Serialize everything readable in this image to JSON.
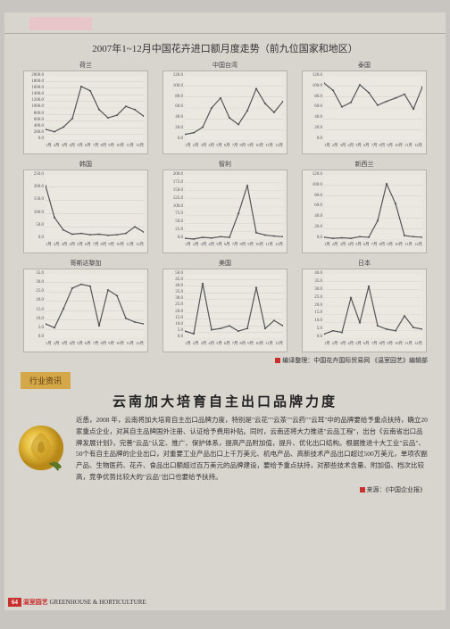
{
  "watermark": "诚信资讯 http://www.cqvip.com",
  "main_title": "2007年1~12月中国花卉进口额月度走势（前九位国家和地区）",
  "x_ticks": [
    "1月",
    "2月",
    "3月",
    "4月",
    "5月",
    "6月",
    "7月",
    "8月",
    "9月",
    "10月",
    "11月",
    "12月"
  ],
  "charts": [
    {
      "label": "荷兰",
      "type": "line",
      "y_label": "进口金额（万美元）",
      "ylim": [
        0,
        2000
      ],
      "ytick_step": 200,
      "values": [
        350,
        280,
        420,
        680,
        1650,
        1520,
        950,
        700,
        780,
        1050,
        950,
        750
      ],
      "line_color": "#555555",
      "background": "#e8e5df",
      "grid_color": "#c5c2bc"
    },
    {
      "label": "中国台湾",
      "type": "line",
      "y_label": "进口金额（万美元）",
      "ylim": [
        0,
        120
      ],
      "ytick_step": 20,
      "values": [
        12,
        15,
        25,
        60,
        78,
        42,
        30,
        55,
        95,
        68,
        52,
        72
      ],
      "line_color": "#555555",
      "background": "#e8e5df",
      "grid_color": "#c5c2bc"
    },
    {
      "label": "泰国",
      "type": "line",
      "y_label": "进口金额（万美元）",
      "ylim": [
        0,
        120
      ],
      "ytick_step": 20,
      "values": [
        105,
        92,
        62,
        70,
        102,
        88,
        65,
        72,
        78,
        85,
        58,
        98
      ],
      "line_color": "#555555",
      "background": "#e8e5df",
      "grid_color": "#c5c2bc"
    },
    {
      "label": "韩国",
      "type": "line",
      "y_label": "进口金额（万美元）",
      "ylim": [
        0,
        250
      ],
      "ytick_step": 50,
      "values": [
        205,
        85,
        38,
        22,
        25,
        20,
        22,
        18,
        20,
        25,
        50,
        30
      ],
      "line_color": "#555555",
      "background": "#e8e5df",
      "grid_color": "#c5c2bc"
    },
    {
      "label": "智利",
      "type": "line",
      "y_label": "进口金额（万美元）",
      "ylim": [
        0,
        200
      ],
      "ytick_step": 25,
      "values": [
        5,
        3,
        8,
        6,
        10,
        8,
        80,
        165,
        22,
        15,
        12,
        10
      ],
      "line_color": "#555555",
      "background": "#e8e5df",
      "grid_color": "#c5c2bc"
    },
    {
      "label": "新西兰",
      "type": "line",
      "y_label": "进口金额（万美元）",
      "ylim": [
        0,
        120
      ],
      "ytick_step": 20,
      "values": [
        5,
        3,
        4,
        3,
        6,
        5,
        35,
        102,
        66,
        8,
        6,
        5
      ],
      "line_color": "#555555",
      "background": "#e8e5df",
      "grid_color": "#c5c2bc"
    },
    {
      "label": "哥斯达黎加",
      "type": "line",
      "y_label": "进口金额（万美元）",
      "ylim": [
        0,
        35
      ],
      "ytick_step": 5,
      "values": [
        8,
        6,
        16,
        27,
        29,
        28,
        7,
        26,
        23,
        11,
        9,
        8
      ],
      "line_color": "#555555",
      "background": "#e8e5df",
      "grid_color": "#c5c2bc"
    },
    {
      "label": "美国",
      "type": "line",
      "y_label": "进口金额（万美元）",
      "ylim": [
        0,
        50
      ],
      "ytick_step": 5,
      "values": [
        6,
        4,
        42,
        7,
        8,
        10,
        6,
        8,
        39,
        8,
        14,
        10
      ],
      "line_color": "#555555",
      "background": "#e8e5df",
      "grid_color": "#c5c2bc"
    },
    {
      "label": "日本",
      "type": "line",
      "y_label": "进口金额（万美元）",
      "ylim": [
        0,
        40
      ],
      "ytick_step": 5,
      "values": [
        3,
        5,
        4,
        25,
        10,
        32,
        8,
        6,
        5,
        14,
        7,
        6
      ],
      "line_color": "#555555",
      "background": "#e8e5df",
      "grid_color": "#c5c2bc"
    }
  ],
  "credit_line": "编译整理：中国花卉国际贸易网 《温室园艺》编辑部",
  "section_tag": "行业资讯",
  "article": {
    "title": "云南加大培育自主出口品牌力度",
    "body": "近悉，2008 年，云南将加大培育自主出口品牌力度，特别是\"云花\"\"云茶\"\"云药\"\"云耳\"中的品牌要给予重点扶持，确立20家重点企业，对其自主品牌国外注册、认证给予费用补贴。同时，云南还将大力推进\"云品工程\"，出台《云南省出口品牌发展计划》，完善\"云品\"认定、推广、保护体系，提高产品附加值，提升、优化出口结构。根据推进十大工业\"云品\"、50个有自主品牌的企业出口，对重要工业产品出口上千万美元、机电产品、高新技术产品出口超过500万美元，单项农副产品、生物医药、花卉、食品出口额超过百万美元的品牌建设，要给予重点扶持，对那些技术含量、附加值、档次比较高，竞争优势比较大的\"云品\"出口也要给予扶持。",
    "source": "来源：《中国企业报》"
  },
  "footer": {
    "page_num": "64",
    "magazine_cn": "温室园艺",
    "magazine_en": "GREENHOUSE & HORTICULTURE"
  },
  "colors": {
    "page_bg": "#d8d4ce",
    "chart_bg": "#e8e5df",
    "accent_red": "#c83030",
    "tag_bg": "#d4a848"
  }
}
